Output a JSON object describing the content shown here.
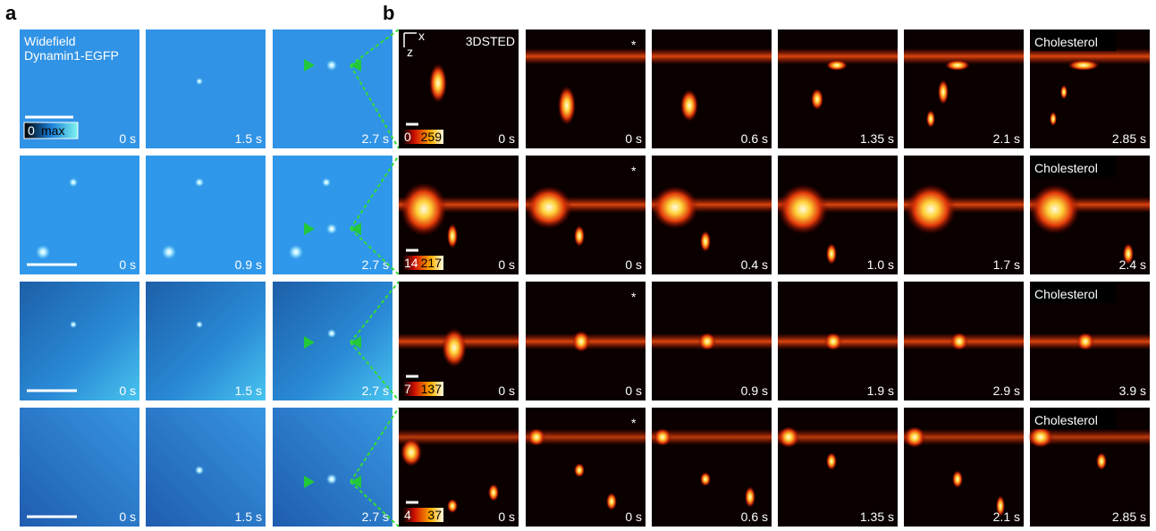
{
  "panel_a": {
    "label": "a",
    "title": "Widefield",
    "subtitle": "Dynamin1-EGFP",
    "colorbar": [
      "0",
      "max"
    ],
    "rows": [
      [
        "0 s",
        "1.5 s",
        "2.7 s"
      ],
      [
        "0 s",
        "0.9 s",
        "2.7 s"
      ],
      [
        "0 s",
        "1.5 s",
        "2.7 s"
      ],
      [
        "0 s",
        "1.5 s",
        "2.7 s"
      ]
    ]
  },
  "panel_b": {
    "label": "b",
    "axes": [
      "x",
      "z"
    ],
    "title": "3DSTED",
    "marker": "*",
    "treatment": "Cholesterol",
    "rows": [
      {
        "colorbar": [
          "0",
          "259"
        ],
        "times": [
          "0 s",
          "0 s",
          "0.6 s",
          "1.35 s",
          "2.1 s",
          "2.85 s"
        ]
      },
      {
        "colorbar": [
          "14",
          "217"
        ],
        "times": [
          "0 s",
          "0 s",
          "0.4 s",
          "1.0 s",
          "1.7 s",
          "2.4 s"
        ]
      },
      {
        "colorbar": [
          "7",
          "137"
        ],
        "times": [
          "0 s",
          "0 s",
          "0.9 s",
          "1.9 s",
          "2.9 s",
          "3.9 s"
        ]
      },
      {
        "colorbar": [
          "4",
          "37"
        ],
        "times": [
          "0 s",
          "0 s",
          "0.6 s",
          "1.35 s",
          "2.1 s",
          "2.85 s"
        ]
      }
    ]
  }
}
